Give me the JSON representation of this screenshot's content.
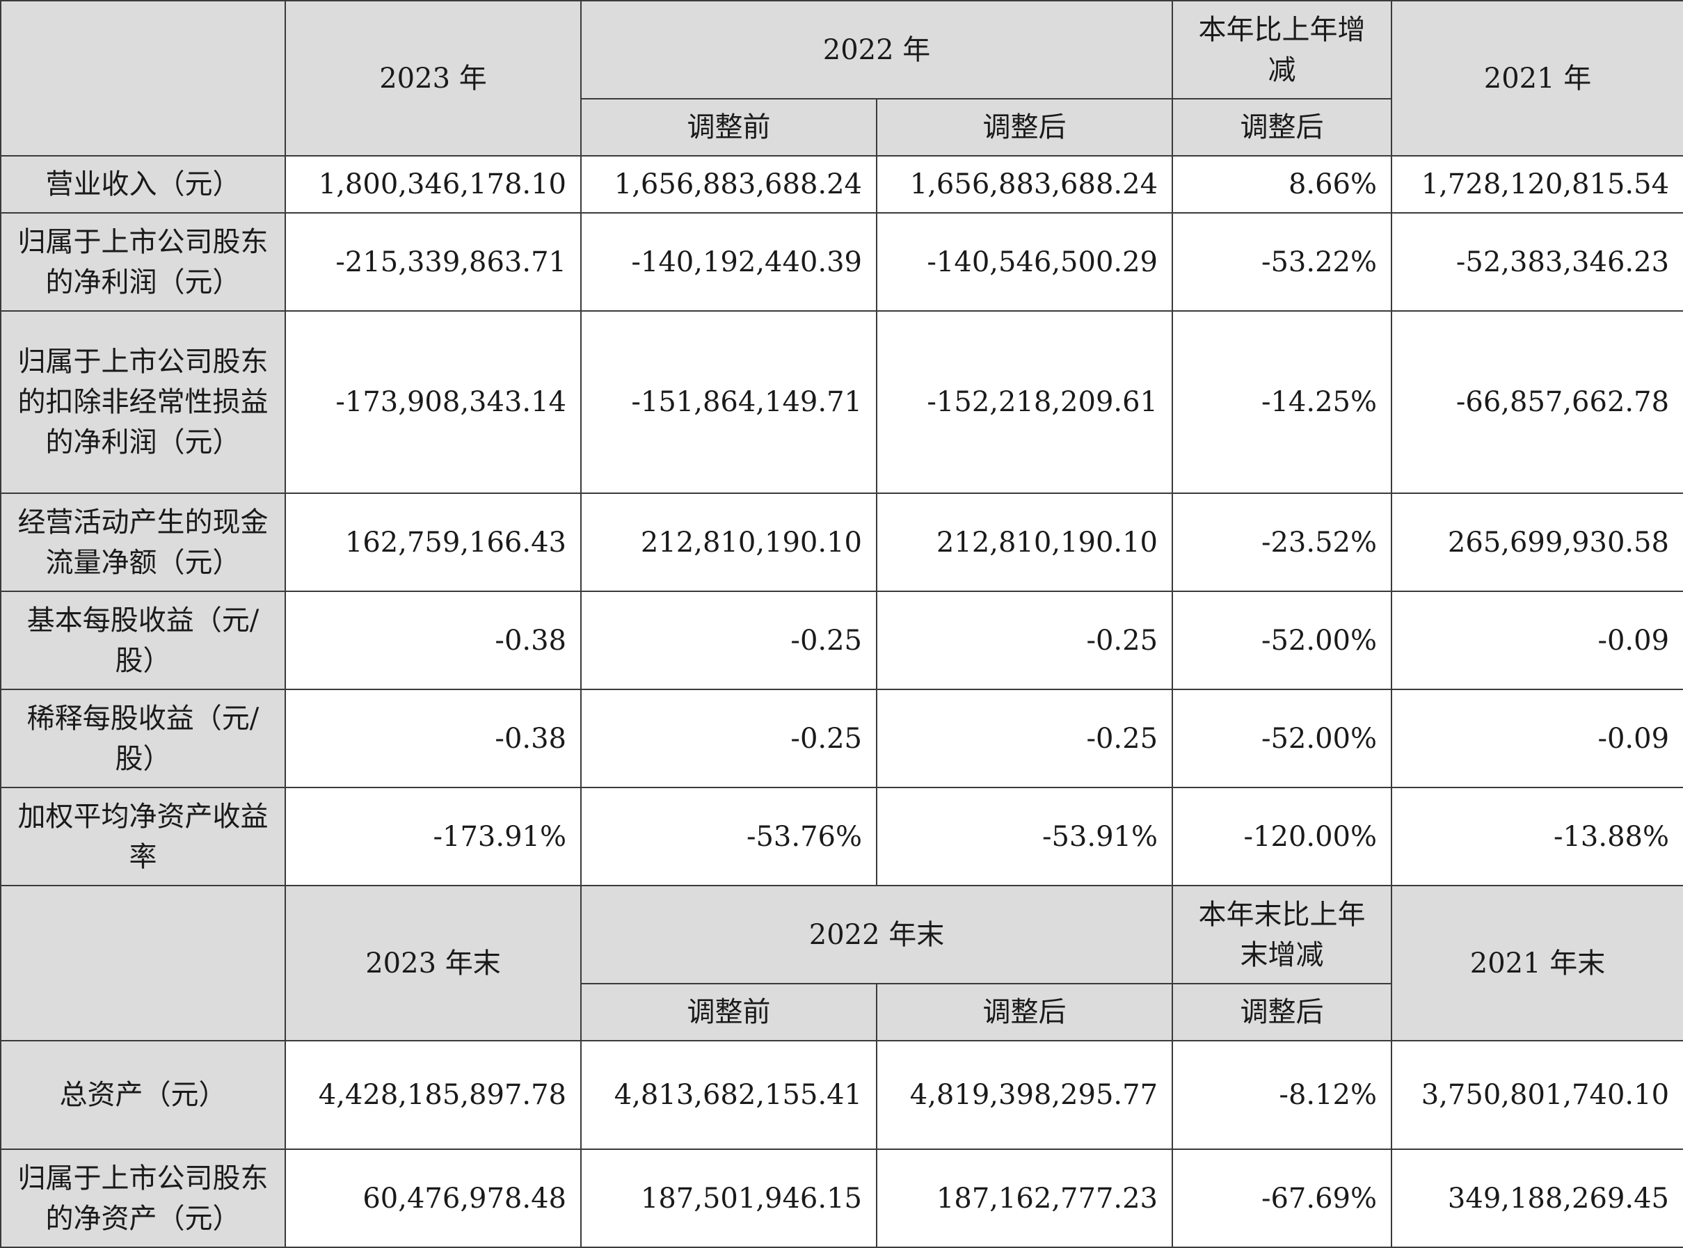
{
  "header1": {
    "col_2023": "2023 年",
    "col_2022": "2022 年",
    "col_change": "本年比上年增减",
    "col_2021": "2021 年",
    "sub_before": "调整前",
    "sub_after": "调整后",
    "sub_change_after": "调整后"
  },
  "rows1": [
    {
      "label": "营业收入（元）",
      "v2023": "1,800,346,178.10",
      "v2022_before": "1,656,883,688.24",
      "v2022_after": "1,656,883,688.24",
      "change": "8.66%",
      "v2021": "1,728,120,815.54"
    },
    {
      "label": "归属于上市公司股东的净利润（元）",
      "v2023": "-215,339,863.71",
      "v2022_before": "-140,192,440.39",
      "v2022_after": "-140,546,500.29",
      "change": "-53.22%",
      "v2021": "-52,383,346.23"
    },
    {
      "label": "归属于上市公司股东的扣除非经常性损益的净利润（元）",
      "v2023": "-173,908,343.14",
      "v2022_before": "-151,864,149.71",
      "v2022_after": "-152,218,209.61",
      "change": "-14.25%",
      "v2021": "-66,857,662.78"
    },
    {
      "label": "经营活动产生的现金流量净额（元）",
      "v2023": "162,759,166.43",
      "v2022_before": "212,810,190.10",
      "v2022_after": "212,810,190.10",
      "change": "-23.52%",
      "v2021": "265,699,930.58"
    },
    {
      "label": "基本每股收益（元/股）",
      "v2023": "-0.38",
      "v2022_before": "-0.25",
      "v2022_after": "-0.25",
      "change": "-52.00%",
      "v2021": "-0.09"
    },
    {
      "label": "稀释每股收益（元/股）",
      "v2023": "-0.38",
      "v2022_before": "-0.25",
      "v2022_after": "-0.25",
      "change": "-52.00%",
      "v2021": "-0.09"
    },
    {
      "label": "加权平均净资产收益率",
      "v2023": "-173.91%",
      "v2022_before": "-53.76%",
      "v2022_after": "-53.91%",
      "change": "-120.00%",
      "v2021": "-13.88%"
    }
  ],
  "header2": {
    "col_2023": "2023 年末",
    "col_2022": "2022 年末",
    "col_change": "本年末比上年末增减",
    "col_2021": "2021 年末",
    "sub_before": "调整前",
    "sub_after": "调整后",
    "sub_change_after": "调整后"
  },
  "rows2": [
    {
      "label": "总资产（元）",
      "v2023": "4,428,185,897.78",
      "v2022_before": "4,813,682,155.41",
      "v2022_after": "4,819,398,295.77",
      "change": "-8.12%",
      "v2021": "3,750,801,740.10"
    },
    {
      "label": "归属于上市公司股东的净资产（元）",
      "v2023": "60,476,978.48",
      "v2022_before": "187,501,946.15",
      "v2022_after": "187,162,777.23",
      "change": "-67.69%",
      "v2021": "349,188,269.45"
    }
  ]
}
